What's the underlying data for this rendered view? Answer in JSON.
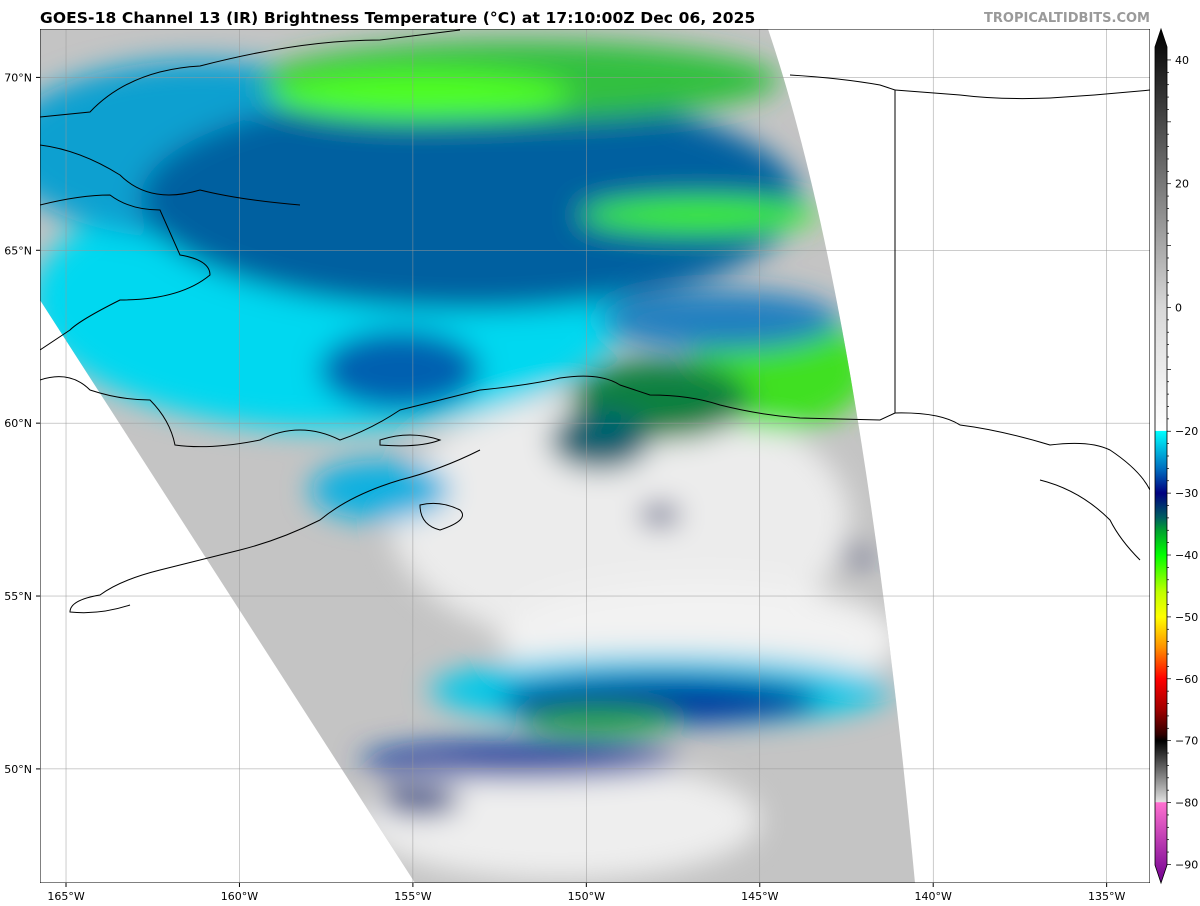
{
  "header": {
    "title": "GOES-18 Channel 13 (IR) Brightness Temperature (°C) at 17:10:00Z Dec 06, 2025",
    "brand": "TROPICALTIDBITS.COM"
  },
  "map": {
    "region": "Gulf of Alaska / Alaska",
    "lon_range": [
      -165.75,
      -133.75
    ],
    "lat_range": [
      46.7,
      71.4
    ],
    "lon_ticks": [
      {
        "value": -165,
        "label": "165°W"
      },
      {
        "value": -160,
        "label": "160°W"
      },
      {
        "value": -155,
        "label": "155°W"
      },
      {
        "value": -150,
        "label": "150°W"
      },
      {
        "value": -145,
        "label": "145°W"
      },
      {
        "value": -140,
        "label": "140°W"
      },
      {
        "value": -135,
        "label": "135°W"
      }
    ],
    "lat_ticks": [
      {
        "value": 70,
        "label": "70°N"
      },
      {
        "value": 65,
        "label": "65°N"
      },
      {
        "value": 60,
        "label": "60°N"
      },
      {
        "value": 55,
        "label": "55°N"
      },
      {
        "value": 50,
        "label": "50°N"
      }
    ],
    "grid": true
  },
  "colorbar": {
    "range": [
      -93,
      45
    ],
    "ticks": [
      40,
      20,
      0,
      -20,
      -30,
      -40,
      -50,
      -60,
      -70,
      -80,
      -90
    ],
    "tick_labels": [
      "40",
      "20",
      "0",
      "−20",
      "−30",
      "−40",
      "−50",
      "−60",
      "−70",
      "−80",
      "−90"
    ],
    "stops": [
      [
        45,
        "#000000"
      ],
      [
        0,
        "#d8d8d8"
      ],
      [
        -19.9,
        "#ffffff"
      ],
      [
        -20,
        "#00ffff"
      ],
      [
        -26,
        "#0070c0"
      ],
      [
        -30,
        "#000080"
      ],
      [
        -34,
        "#006060"
      ],
      [
        -36,
        "#00a030"
      ],
      [
        -40,
        "#00ff00"
      ],
      [
        -46,
        "#c0ff00"
      ],
      [
        -50,
        "#ffff00"
      ],
      [
        -55,
        "#ff9000"
      ],
      [
        -60,
        "#ff0000"
      ],
      [
        -65,
        "#a00000"
      ],
      [
        -69,
        "#300000"
      ],
      [
        -70,
        "#000000"
      ],
      [
        -79.9,
        "#e0e0e0"
      ],
      [
        -80,
        "#ff70d0"
      ],
      [
        -93,
        "#700090"
      ]
    ]
  }
}
